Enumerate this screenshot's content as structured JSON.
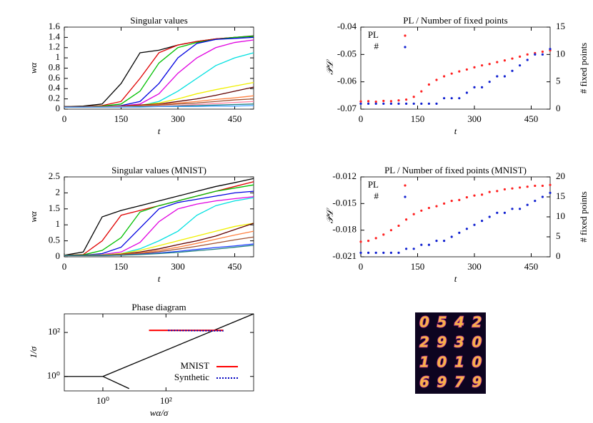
{
  "chart_data": [
    {
      "type": "line",
      "title": "Singular values",
      "xlabel": "t",
      "ylabel": "wα",
      "x": [
        0,
        50,
        100,
        150,
        200,
        250,
        300,
        350,
        400,
        450,
        500
      ],
      "xlim": [
        0,
        500
      ],
      "xticks": [
        0,
        150,
        300,
        450
      ],
      "ylim": [
        0,
        1.6
      ],
      "yticks": [
        0,
        0.2,
        0.4,
        0.6,
        0.8,
        1,
        1.2,
        1.4,
        1.6
      ],
      "series": [
        {
          "color": "#000000",
          "values": [
            0.05,
            0.06,
            0.1,
            0.5,
            1.1,
            1.15,
            1.25,
            1.32,
            1.37,
            1.4,
            1.43
          ]
        },
        {
          "color": "#e00000",
          "values": [
            0.05,
            0.05,
            0.07,
            0.15,
            0.6,
            1.1,
            1.25,
            1.32,
            1.37,
            1.4,
            1.42
          ]
        },
        {
          "color": "#00c000",
          "values": [
            0.05,
            0.05,
            0.06,
            0.1,
            0.35,
            0.9,
            1.2,
            1.3,
            1.36,
            1.4,
            1.42
          ]
        },
        {
          "color": "#0000e0",
          "values": [
            0.05,
            0.05,
            0.05,
            0.07,
            0.15,
            0.5,
            1.0,
            1.28,
            1.36,
            1.38,
            1.4
          ]
        },
        {
          "color": "#e000e0",
          "values": [
            0.05,
            0.05,
            0.05,
            0.06,
            0.1,
            0.3,
            0.7,
            1.0,
            1.2,
            1.3,
            1.35
          ]
        },
        {
          "color": "#00e0e0",
          "values": [
            0.05,
            0.05,
            0.05,
            0.05,
            0.07,
            0.15,
            0.35,
            0.6,
            0.85,
            1.0,
            1.1
          ]
        },
        {
          "color": "#f0f000",
          "values": [
            0.05,
            0.05,
            0.05,
            0.06,
            0.08,
            0.12,
            0.2,
            0.3,
            0.38,
            0.45,
            0.52
          ]
        },
        {
          "color": "#600000",
          "values": [
            0.05,
            0.05,
            0.05,
            0.06,
            0.08,
            0.1,
            0.15,
            0.2,
            0.27,
            0.35,
            0.43
          ]
        },
        {
          "color": "#ff8040",
          "values": [
            0.04,
            0.04,
            0.05,
            0.05,
            0.07,
            0.09,
            0.12,
            0.15,
            0.19,
            0.22,
            0.26
          ]
        },
        {
          "color": "#a05030",
          "values": [
            0.04,
            0.04,
            0.05,
            0.05,
            0.06,
            0.08,
            0.1,
            0.12,
            0.15,
            0.18,
            0.2
          ]
        },
        {
          "color": "#ff80a0",
          "values": [
            0.04,
            0.04,
            0.04,
            0.05,
            0.05,
            0.06,
            0.07,
            0.09,
            0.11,
            0.13,
            0.15
          ]
        },
        {
          "color": "#208080",
          "values": [
            0.04,
            0.04,
            0.04,
            0.04,
            0.05,
            0.05,
            0.06,
            0.07,
            0.08,
            0.09,
            0.1
          ]
        },
        {
          "color": "#40a0ff",
          "values": [
            0.04,
            0.04,
            0.04,
            0.04,
            0.04,
            0.05,
            0.05,
            0.05,
            0.06,
            0.06,
            0.07
          ]
        }
      ]
    },
    {
      "type": "scatter",
      "title": "PL / Number of fixed points",
      "xlabel": "t",
      "ylabel": "𝒫ℒ",
      "y2label": "# fixed points",
      "legend": "top-left",
      "x": [
        0,
        20,
        40,
        60,
        80,
        100,
        120,
        140,
        160,
        180,
        200,
        220,
        240,
        260,
        280,
        300,
        320,
        340,
        360,
        380,
        400,
        420,
        440,
        460,
        480,
        500
      ],
      "xlim": [
        0,
        500
      ],
      "xticks": [
        0,
        150,
        300,
        450
      ],
      "ylim": [
        -0.07,
        -0.04
      ],
      "yticks": [
        -0.07,
        -0.06,
        -0.05,
        -0.04
      ],
      "y2lim": [
        0,
        15
      ],
      "y2ticks": [
        0,
        5,
        10,
        15
      ],
      "series": [
        {
          "name": "PL",
          "color": "#ff2020",
          "values": [
            -0.0672,
            -0.0671,
            -0.0673,
            -0.067,
            -0.0671,
            -0.0668,
            -0.0665,
            -0.0655,
            -0.0635,
            -0.061,
            -0.0593,
            -0.058,
            -0.057,
            -0.0562,
            -0.0555,
            -0.0547,
            -0.054,
            -0.0535,
            -0.0528,
            -0.0522,
            -0.0515,
            -0.0508,
            -0.05,
            -0.0495,
            -0.049,
            -0.0485
          ]
        },
        {
          "name": "#",
          "color": "#1020d0",
          "axis": "y2",
          "values": [
            1,
            1,
            1,
            1,
            1,
            1,
            1,
            1,
            1,
            1,
            1,
            2,
            2,
            2,
            3,
            4,
            4,
            5,
            6,
            6,
            7,
            8,
            9,
            10,
            10,
            11
          ]
        }
      ]
    },
    {
      "type": "line",
      "title": "Singular values (MNIST)",
      "xlabel": "t",
      "ylabel": "wα",
      "x": [
        0,
        50,
        100,
        150,
        200,
        250,
        300,
        350,
        400,
        450,
        500
      ],
      "xlim": [
        0,
        500
      ],
      "xticks": [
        0,
        150,
        300,
        450
      ],
      "ylim": [
        0,
        2.5
      ],
      "yticks": [
        0,
        0.5,
        1,
        1.5,
        2,
        2.5
      ],
      "series": [
        {
          "color": "#000000",
          "values": [
            0.05,
            0.15,
            1.25,
            1.45,
            1.6,
            1.75,
            1.9,
            2.05,
            2.2,
            2.32,
            2.45
          ]
        },
        {
          "color": "#e00000",
          "values": [
            0.05,
            0.07,
            0.5,
            1.3,
            1.45,
            1.6,
            1.75,
            1.9,
            2.05,
            2.2,
            2.35
          ]
        },
        {
          "color": "#00c000",
          "values": [
            0.05,
            0.06,
            0.2,
            0.6,
            1.4,
            1.6,
            1.75,
            1.9,
            2.05,
            2.15,
            2.25
          ]
        },
        {
          "color": "#0000e0",
          "values": [
            0.05,
            0.05,
            0.1,
            0.3,
            0.9,
            1.5,
            1.7,
            1.8,
            1.9,
            2.0,
            2.05
          ]
        },
        {
          "color": "#e000e0",
          "values": [
            0.05,
            0.05,
            0.07,
            0.15,
            0.45,
            1.1,
            1.5,
            1.65,
            1.75,
            1.82,
            1.88
          ]
        },
        {
          "color": "#00e0e0",
          "values": [
            0.05,
            0.05,
            0.06,
            0.1,
            0.25,
            0.5,
            0.8,
            1.3,
            1.6,
            1.75,
            1.85
          ]
        },
        {
          "color": "#f0f000",
          "values": [
            0.05,
            0.05,
            0.06,
            0.1,
            0.2,
            0.35,
            0.5,
            0.65,
            0.8,
            0.95,
            1.05
          ]
        },
        {
          "color": "#600000",
          "values": [
            0.05,
            0.05,
            0.05,
            0.08,
            0.15,
            0.25,
            0.38,
            0.5,
            0.65,
            0.85,
            1.05
          ]
        },
        {
          "color": "#ff8040",
          "values": [
            0.04,
            0.04,
            0.05,
            0.07,
            0.12,
            0.2,
            0.3,
            0.42,
            0.55,
            0.68,
            0.8
          ]
        },
        {
          "color": "#a05030",
          "values": [
            0.04,
            0.04,
            0.05,
            0.06,
            0.1,
            0.16,
            0.24,
            0.33,
            0.43,
            0.53,
            0.62
          ]
        },
        {
          "color": "#2040ff",
          "values": [
            0.04,
            0.04,
            0.04,
            0.05,
            0.08,
            0.12,
            0.17,
            0.23,
            0.29,
            0.34,
            0.4
          ]
        },
        {
          "color": "#208080",
          "values": [
            0.04,
            0.04,
            0.04,
            0.05,
            0.07,
            0.1,
            0.14,
            0.19,
            0.24,
            0.3,
            0.36
          ]
        }
      ]
    },
    {
      "type": "scatter",
      "title": "PL / Number of fixed points (MNIST)",
      "xlabel": "t",
      "ylabel": "𝒫ℒ",
      "y2label": "# fixed points",
      "legend": "top-left",
      "x": [
        0,
        20,
        40,
        60,
        80,
        100,
        120,
        140,
        160,
        180,
        200,
        220,
        240,
        260,
        280,
        300,
        320,
        340,
        360,
        380,
        400,
        420,
        440,
        460,
        480,
        500
      ],
      "xlim": [
        0,
        500
      ],
      "xticks": [
        0,
        150,
        300,
        450
      ],
      "ylim": [
        -0.021,
        -0.012
      ],
      "yticks": [
        -0.021,
        -0.018,
        -0.015,
        -0.012
      ],
      "y2lim": [
        0,
        20
      ],
      "y2ticks": [
        0,
        5,
        10,
        15,
        20
      ],
      "series": [
        {
          "name": "PL",
          "color": "#ff2020",
          "values": [
            -0.0193,
            -0.0192,
            -0.0189,
            -0.0185,
            -0.018,
            -0.0175,
            -0.0168,
            -0.0162,
            -0.0158,
            -0.0155,
            -0.0153,
            -0.015,
            -0.0147,
            -0.0146,
            -0.0143,
            -0.0141,
            -0.014,
            -0.0137,
            -0.0136,
            -0.0134,
            -0.0133,
            -0.0132,
            -0.0131,
            -0.013,
            -0.013,
            -0.0129
          ]
        },
        {
          "name": "#",
          "color": "#1020d0",
          "axis": "y2",
          "values": [
            1,
            1,
            1,
            1,
            1,
            1,
            2,
            2,
            3,
            3,
            4,
            4,
            5,
            6,
            7,
            8,
            9,
            10,
            11,
            11,
            12,
            12,
            13,
            14,
            15,
            16
          ]
        }
      ]
    },
    {
      "type": "line",
      "title": "Phase diagram",
      "xlabel": "wα/σ",
      "ylabel": "1/σ",
      "xlog": true,
      "ylog": true,
      "legend": "bottom-right",
      "xlim": [
        0.06,
        60000
      ],
      "xticks": [
        {
          "value": 1,
          "label": "10⁰"
        },
        {
          "value": 100,
          "label": "10²"
        }
      ],
      "ylim": [
        0.22,
        700
      ],
      "yticks": [
        {
          "value": 1,
          "label": "10⁰"
        },
        {
          "value": 100,
          "label": "10²"
        }
      ],
      "series": [
        {
          "color": "#000000",
          "x": [
            0.06,
            1
          ],
          "values": [
            1,
            1
          ]
        },
        {
          "color": "#000000",
          "x": [
            1,
            60000
          ],
          "values": [
            1,
            700
          ]
        },
        {
          "color": "#000000",
          "x": [
            1,
            6.8
          ],
          "values": [
            1,
            0.28
          ]
        },
        {
          "name": "MNIST",
          "color": "#ff0000",
          "x": [
            29,
            6600
          ],
          "values": [
            125,
            125
          ]
        },
        {
          "name": "Synthetic",
          "color": "#0000c0",
          "style": "dotted",
          "x": [
            117,
            6600
          ],
          "values": [
            124,
            118
          ]
        }
      ]
    }
  ],
  "image": {
    "rows": [
      [
        "0",
        "5",
        "4",
        "2"
      ],
      [
        "2",
        "9",
        "3",
        "0"
      ],
      [
        "1",
        "0",
        "1",
        "0"
      ],
      [
        "6",
        "9",
        "7",
        "9"
      ]
    ]
  }
}
